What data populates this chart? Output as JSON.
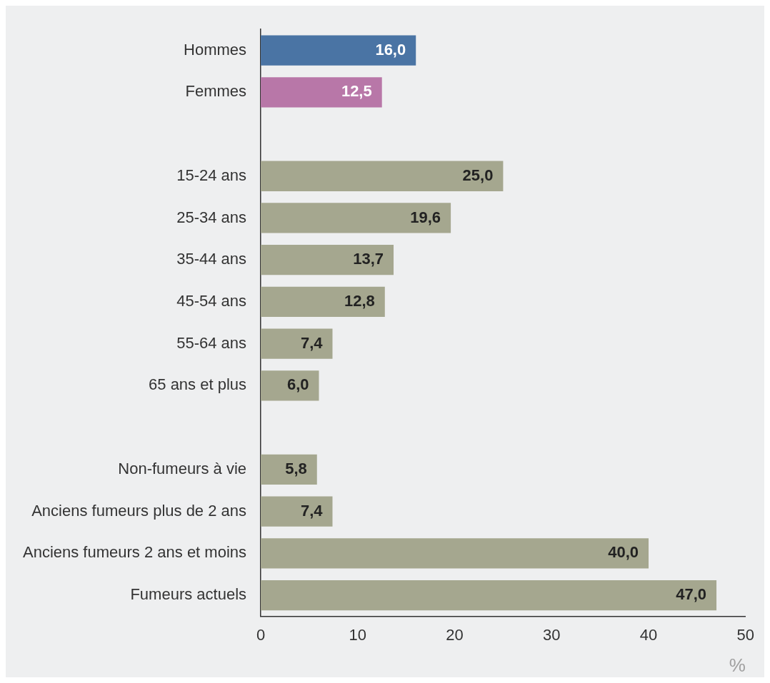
{
  "chart_data": {
    "type": "bar",
    "orientation": "horizontal",
    "categories": [
      "Hommes",
      "Femmes",
      null,
      "15-24 ans",
      "25-34 ans",
      "35-44 ans",
      "45-54 ans",
      "55-64 ans",
      "65 ans et plus",
      null,
      "Non-fumeurs à vie",
      "Anciens fumeurs plus de 2 ans",
      "Anciens fumeurs 2 ans et moins",
      "Fumeurs actuels"
    ],
    "values": [
      16.0,
      12.5,
      null,
      25.0,
      19.6,
      13.7,
      12.8,
      7.4,
      6.0,
      null,
      5.8,
      7.4,
      40.0,
      47.0
    ],
    "value_labels": [
      "16,0",
      "12,5",
      null,
      "25,0",
      "19,6",
      "13,7",
      "12,8",
      "7,4",
      "6,0",
      null,
      "5,8",
      "7,4",
      "40,0",
      "47,0"
    ],
    "colors": [
      "#4a74a4",
      "#b877a8",
      "#a5a78f",
      "#a5a78f",
      "#a5a78f",
      "#a5a78f",
      "#a5a78f",
      "#a5a78f",
      "#a5a78f",
      "#a5a78f",
      "#a5a78f",
      "#a5a78f",
      "#a5a78f",
      "#a5a78f"
    ],
    "xlim": [
      0,
      50
    ],
    "xticks": [
      0,
      10,
      20,
      30,
      40,
      50
    ],
    "xlabel": "%",
    "grid": false,
    "legend": false
  }
}
